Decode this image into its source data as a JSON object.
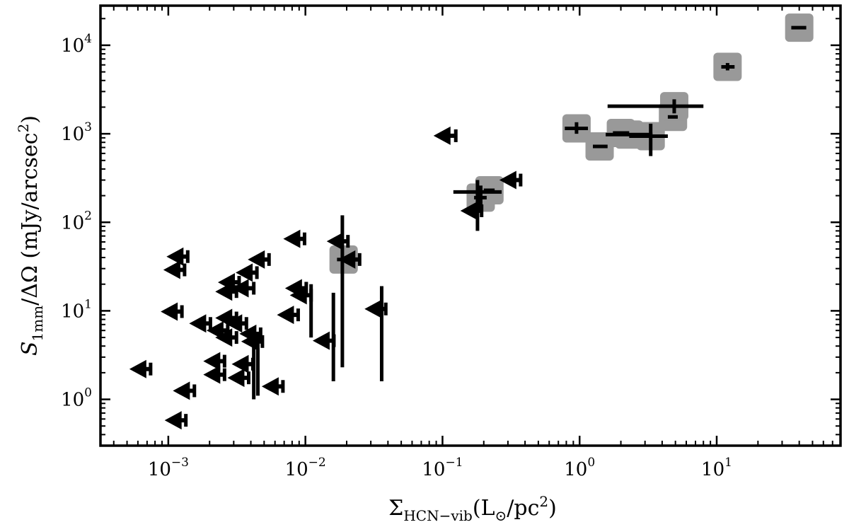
{
  "chart_data": {
    "type": "scatter",
    "title": "",
    "xlabel": {
      "symbol": "Σ",
      "subscript": "HCN−vib",
      "unit": "(L",
      "unit_sub": "⊙",
      "unit_end": "/pc",
      "unit_sup": "2",
      "close": ")"
    },
    "ylabel": {
      "symbol": "S",
      "subscript": "1mm",
      "rest": "/ΔΩ (mJy/arcsec",
      "sup": "2",
      "close": ")"
    },
    "x_scale": "log",
    "y_scale": "log",
    "xlim": [
      0.00032,
      80
    ],
    "ylim": [
      0.3,
      28000
    ],
    "x_ticks": [
      {
        "value": 0.001,
        "base": "10",
        "exp": "−3"
      },
      {
        "value": 0.01,
        "base": "10",
        "exp": "−2"
      },
      {
        "value": 0.1,
        "base": "10",
        "exp": "−1"
      },
      {
        "value": 1,
        "base": "10",
        "exp": "0"
      },
      {
        "value": 10,
        "base": "10",
        "exp": "1"
      }
    ],
    "y_ticks": [
      {
        "value": 1,
        "base": "10",
        "exp": "0"
      },
      {
        "value": 10,
        "base": "10",
        "exp": "1"
      },
      {
        "value": 100,
        "base": "10",
        "exp": "2"
      },
      {
        "value": 1000,
        "base": "10",
        "exp": "3"
      },
      {
        "value": 10000,
        "base": "10",
        "exp": "4"
      }
    ],
    "colors": {
      "marker": "#000000",
      "detection_box": "#999999"
    },
    "detections": [
      {
        "x": 0.019,
        "y": 38,
        "xerr": [
          0.017,
          0.024
        ],
        "yerr": null
      },
      {
        "x": 0.19,
        "y": 190,
        "xerr": [
          0.17,
          0.21
        ],
        "yerr": [
          130,
          260
        ]
      },
      {
        "x": 0.22,
        "y": 230,
        "xerr": [
          0.2,
          0.24
        ],
        "yerr": null
      },
      {
        "x": 0.95,
        "y": 1150,
        "xerr": [
          0.78,
          1.15
        ],
        "yerr": [
          1000,
          1350
        ]
      },
      {
        "x": 1.4,
        "y": 720,
        "xerr": [
          1.25,
          1.6
        ],
        "yerr": null
      },
      {
        "x": 2.0,
        "y": 1020,
        "xerr": [
          1.75,
          2.3
        ],
        "yerr": null
      },
      {
        "x": 2.3,
        "y": 980,
        "xerr": [
          1.55,
          3.4
        ],
        "yerr": null
      },
      {
        "x": 3.3,
        "y": 940,
        "xerr": [
          2.3,
          4.4
        ],
        "yerr": [
          560,
          1300
        ]
      },
      {
        "x": 4.8,
        "y": 1550,
        "xerr": [
          4.4,
          5.2
        ],
        "yerr": null
      },
      {
        "x": 4.9,
        "y": 2050,
        "xerr": [
          1.6,
          8.0
        ],
        "yerr": [
          1700,
          2450
        ]
      },
      {
        "x": 12.0,
        "y": 5700,
        "xerr": [
          10.8,
          13.5
        ],
        "yerr": [
          5200,
          6300
        ]
      },
      {
        "x": 40.0,
        "y": 15800,
        "xerr": [
          35.0,
          45.0
        ],
        "yerr": null
      }
    ],
    "extra_errorbars": [
      {
        "x": 0.18,
        "y": 220,
        "xerr": [
          0.12,
          0.27
        ],
        "yerr": [
          80,
          300
        ]
      }
    ],
    "upper_limits": [
      {
        "x": 0.00052,
        "y": 2.2,
        "x_hi": 0.00064,
        "yerr": null
      },
      {
        "x": 0.00094,
        "y": 0.58,
        "x_hi": 0.00125,
        "yerr": null
      },
      {
        "x": 0.00092,
        "y": 29,
        "x_hi": 0.00118,
        "yerr": null
      },
      {
        "x": 0.00097,
        "y": 41,
        "x_hi": 0.00128,
        "yerr": null
      },
      {
        "x": 0.00088,
        "y": 9.8,
        "x_hi": 0.00108,
        "yerr": null
      },
      {
        "x": 0.00108,
        "y": 1.25,
        "x_hi": 0.00155,
        "yerr": null
      },
      {
        "x": 0.00142,
        "y": 7.2,
        "x_hi": 0.0019,
        "yerr": null
      },
      {
        "x": 0.0018,
        "y": 2.7,
        "x_hi": 0.0023,
        "yerr": null
      },
      {
        "x": 0.0018,
        "y": 1.9,
        "x_hi": 0.0024,
        "yerr": null
      },
      {
        "x": 0.0019,
        "y": 6.0,
        "x_hi": 0.0026,
        "yerr": null
      },
      {
        "x": 0.0022,
        "y": 8.3,
        "x_hi": 0.0028,
        "yerr": null
      },
      {
        "x": 0.0022,
        "y": 5.0,
        "x_hi": 0.0029,
        "yerr": null
      },
      {
        "x": 0.0022,
        "y": 16.5,
        "x_hi": 0.0029,
        "yerr": null
      },
      {
        "x": 0.0023,
        "y": 21,
        "x_hi": 0.003,
        "yerr": null
      },
      {
        "x": 0.0026,
        "y": 7.2,
        "x_hi": 0.0037,
        "yerr": null
      },
      {
        "x": 0.0027,
        "y": 1.75,
        "x_hi": 0.0036,
        "yerr": null
      },
      {
        "x": 0.0029,
        "y": 18,
        "x_hi": 0.0042,
        "yerr": null
      },
      {
        "x": 0.0029,
        "y": 2.5,
        "x_hi": 0.0038,
        "yerr": null
      },
      {
        "x": 0.0031,
        "y": 27,
        "x_hi": 0.0043,
        "yerr": null
      },
      {
        "x": 0.0033,
        "y": 5.5,
        "x_hi": 0.0042,
        "yerr": [
          1.0,
          6.5
        ]
      },
      {
        "x": 0.0034,
        "y": 4.5,
        "x_hi": 0.0045,
        "yerr": [
          1.1,
          5.5
        ]
      },
      {
        "x": 0.0038,
        "y": 38,
        "x_hi": 0.0052,
        "yerr": null
      },
      {
        "x": 0.0048,
        "y": 1.4,
        "x_hi": 0.0068,
        "yerr": null
      },
      {
        "x": 0.0062,
        "y": 9.0,
        "x_hi": 0.0082,
        "yerr": null
      },
      {
        "x": 0.0069,
        "y": 65,
        "x_hi": 0.0088,
        "yerr": null
      },
      {
        "x": 0.0071,
        "y": 18,
        "x_hi": 0.0093,
        "yerr": null
      },
      {
        "x": 0.0077,
        "y": 15,
        "x_hi": 0.011,
        "yerr": [
          5.0,
          20
        ]
      },
      {
        "x": 0.0113,
        "y": 4.6,
        "x_hi": 0.016,
        "yerr": [
          1.6,
          16
        ]
      },
      {
        "x": 0.0143,
        "y": 61,
        "x_hi": 0.0193,
        "yerr": null
      },
      {
        "x": 0.0174,
        "y": 38,
        "x_hi": 0.0186,
        "yerr": [
          2.3,
          120
        ]
      },
      {
        "x": 0.027,
        "y": 10.5,
        "x_hi": 0.036,
        "yerr": [
          1.6,
          19
        ]
      },
      {
        "x": 0.086,
        "y": 950,
        "x_hi": 0.125,
        "yerr": null
      },
      {
        "x": 0.135,
        "y": 135,
        "x_hi": 0.18,
        "yerr": null
      },
      {
        "x": 0.26,
        "y": 300,
        "x_hi": 0.36,
        "yerr": null
      }
    ]
  }
}
